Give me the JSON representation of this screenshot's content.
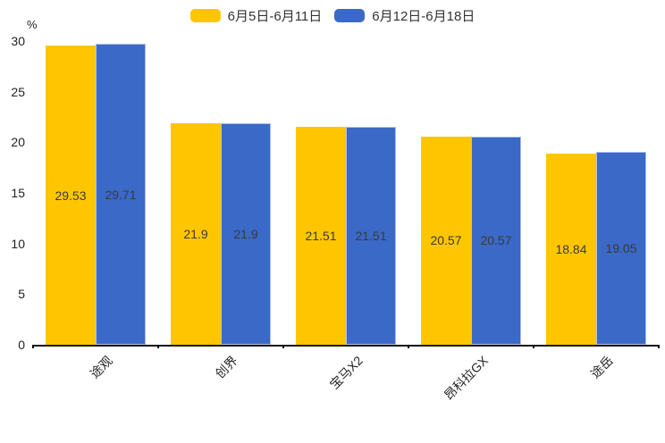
{
  "legend": {
    "items": [
      {
        "label": "6月5日-6月11日",
        "color": "#FFC600"
      },
      {
        "label": "6月12日-6月18日",
        "color": "#3A69C7"
      }
    ]
  },
  "y_axis": {
    "unit": "%"
  },
  "chart_data": {
    "type": "bar",
    "title": "",
    "xlabel": "",
    "ylabel": "%",
    "categories": [
      "途观",
      "创界",
      "宝马X2",
      "昂科拉GX",
      "途岳"
    ],
    "series": [
      {
        "name": "6月5日-6月11日",
        "color": "#FFC600",
        "values": [
          29.53,
          21.9,
          21.51,
          20.57,
          18.84
        ]
      },
      {
        "name": "6月12日-6月18日",
        "color": "#3A69C7",
        "border_color": "#ADBEEA",
        "values": [
          29.71,
          21.9,
          21.51,
          20.57,
          19.05
        ]
      }
    ],
    "ylim": [
      0,
      30
    ],
    "y_ticks": [
      0,
      5,
      10,
      15,
      20,
      25,
      30
    ],
    "grid": false,
    "legend_position": "top-center",
    "value_labels_shown": true,
    "value_label_color": "#3A3A3A",
    "axis_color": "#111111"
  }
}
